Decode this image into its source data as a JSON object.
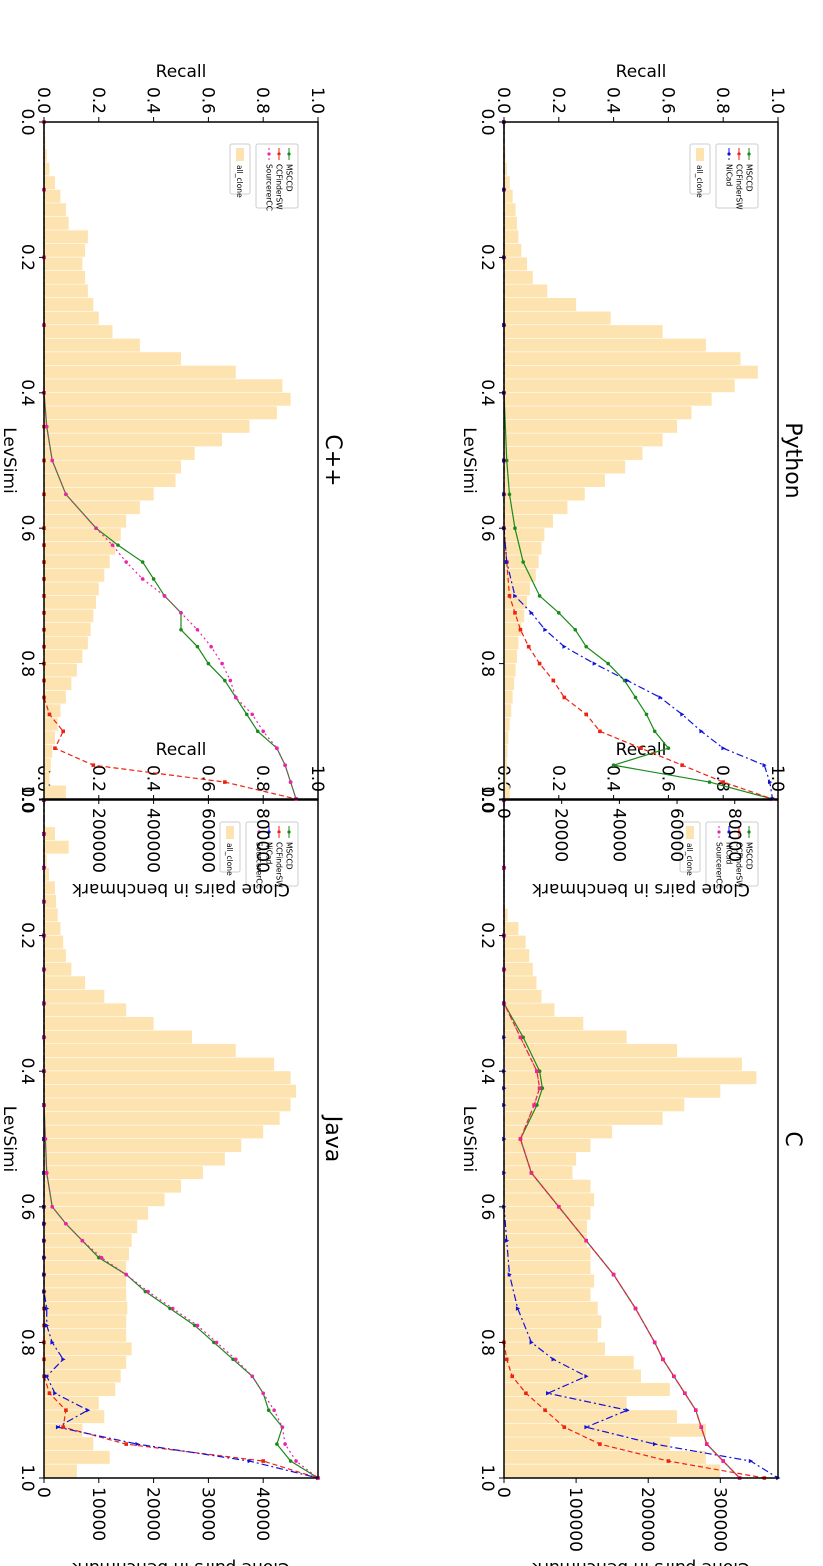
{
  "figure": {
    "rotation": "page rotated 90 degrees clockwise",
    "colors": {
      "MSCCD": "#1a8a1a",
      "CCFinderSW": "#ee2211",
      "NiCad": "#1111dd",
      "SourcererCC": "#ee22aa",
      "all_clone": "#fde3b0"
    }
  },
  "chart_data": [
    {
      "type": "line",
      "panel": "Java",
      "title": "Java",
      "xlabel": "LevSimi",
      "ylabel": "Recall",
      "ylabel_right": "Clone pairs in benchmark",
      "xlim": [
        0,
        1
      ],
      "ylim": [
        0,
        1
      ],
      "xticks": [
        "0.0",
        "0.2",
        "0.4",
        "0.6",
        "0.8",
        "1.0"
      ],
      "yticks": [
        "0.0",
        "0.2",
        "0.4",
        "0.6",
        "0.8",
        "1.0"
      ],
      "y2lim": [
        0,
        50000
      ],
      "y2ticks": [
        "0",
        "10000",
        "20000",
        "30000",
        "40000"
      ],
      "legend_placement": "upper-left",
      "legend": [
        "MSCCD",
        "CCFinderSW",
        "NiCad",
        "SourcererCC"
      ],
      "legend2": [
        "all_clone"
      ],
      "x": [
        0.0,
        0.05,
        0.1,
        0.15,
        0.2,
        0.25,
        0.3,
        0.35,
        0.4,
        0.45,
        0.5,
        0.55,
        0.6,
        0.625,
        0.65,
        0.675,
        0.7,
        0.725,
        0.75,
        0.775,
        0.8,
        0.825,
        0.85,
        0.875,
        0.9,
        0.925,
        0.95,
        0.975,
        1.0
      ],
      "series": [
        {
          "name": "MSCCD",
          "values": [
            0,
            0,
            0,
            0,
            0,
            0,
            0,
            0,
            0,
            0,
            0.005,
            0.01,
            0.03,
            0.08,
            0.14,
            0.2,
            0.3,
            0.37,
            0.46,
            0.55,
            0.62,
            0.69,
            0.76,
            0.8,
            0.82,
            0.87,
            0.85,
            0.9,
            1.0
          ]
        },
        {
          "name": "CCFinderSW",
          "values": [
            0,
            0,
            0,
            0,
            0,
            0,
            0,
            0,
            0,
            0,
            0,
            0,
            0,
            0,
            0,
            0,
            0,
            0,
            0,
            0,
            0,
            0,
            0,
            0.02,
            0.08,
            0.07,
            0.3,
            0.8,
            1.0
          ]
        },
        {
          "name": "NiCad",
          "values": [
            0,
            0,
            0,
            0,
            0,
            0,
            0,
            0,
            0,
            0,
            0,
            0,
            0,
            0,
            0,
            0,
            0,
            0,
            0.01,
            0.01,
            0.03,
            0.07,
            0.01,
            0.04,
            0.16,
            0.05,
            0.34,
            0.75,
            1.0
          ]
        },
        {
          "name": "SourcererCC",
          "values": [
            0,
            0,
            0,
            0,
            0,
            0,
            0,
            0,
            0,
            0,
            0.005,
            0.01,
            0.03,
            0.08,
            0.14,
            0.21,
            0.3,
            0.38,
            0.47,
            0.56,
            0.63,
            0.7,
            0.76,
            0.8,
            0.84,
            0.87,
            0.88,
            0.92,
            1.0
          ]
        }
      ],
      "bars": {
        "name": "all_clone",
        "x_start": 0.0,
        "bin_width": 0.02,
        "values": [
          0,
          0,
          2000,
          4500,
          500,
          900,
          2000,
          2200,
          2500,
          3000,
          3500,
          4000,
          5000,
          7500,
          11000,
          15000,
          20000,
          27000,
          35000,
          42000,
          45000,
          46000,
          45000,
          43000,
          40000,
          36000,
          33000,
          29000,
          25000,
          22000,
          19000,
          17000,
          16000,
          15500,
          15000,
          15000,
          15000,
          15200,
          15000,
          15000,
          16000,
          15000,
          14000,
          13000,
          10000,
          11000,
          7000,
          9000,
          12000,
          6000
        ]
      }
    },
    {
      "type": "line",
      "panel": "C",
      "title": "C",
      "xlabel": "LevSimi",
      "ylabel": "Recall",
      "ylabel_right": "Clone pairs in benchmark",
      "xlim": [
        0,
        1
      ],
      "ylim": [
        0,
        1
      ],
      "xticks": [
        "0.0",
        "0.2",
        "0.4",
        "0.6",
        "0.8",
        "1.0"
      ],
      "yticks": [
        "0.0",
        "0.2",
        "0.4",
        "0.6",
        "0.8",
        "1.0"
      ],
      "y2lim": [
        0,
        380000
      ],
      "y2ticks": [
        "0",
        "100000",
        "200000",
        "300000"
      ],
      "legend_placement": "upper-left",
      "legend": [
        "MSCCD",
        "CCFinderSW",
        "NiCad",
        "SourcererCC"
      ],
      "legend2": [
        "all_clone"
      ],
      "x": [
        0.0,
        0.1,
        0.2,
        0.25,
        0.3,
        0.35,
        0.4,
        0.425,
        0.45,
        0.5,
        0.55,
        0.6,
        0.65,
        0.7,
        0.75,
        0.8,
        0.825,
        0.85,
        0.875,
        0.9,
        0.925,
        0.95,
        0.975,
        1.0
      ],
      "series": [
        {
          "name": "MSCCD",
          "values": [
            0,
            0,
            0,
            0,
            0,
            0.07,
            0.13,
            0.14,
            0.12,
            0.06,
            0.1,
            0.2,
            0.3,
            0.4,
            0.48,
            0.55,
            0.58,
            0.62,
            0.66,
            0.7,
            0.72,
            0.74,
            0.8,
            0.86
          ]
        },
        {
          "name": "CCFinderSW",
          "values": [
            0,
            0,
            0,
            0,
            0,
            0.06,
            0.12,
            0.13,
            0.11,
            0.06,
            0.1,
            0.2,
            0.3,
            0.4,
            0.48,
            0.55,
            0.58,
            0.62,
            0.66,
            0.7,
            0.72,
            0.74,
            0.8,
            0.86
          ]
        },
        {
          "name": "NiCad",
          "values": [
            0,
            0,
            0,
            0,
            0,
            0,
            0,
            0,
            0,
            0,
            0,
            0,
            0.01,
            0.02,
            0.05,
            0.1,
            0.18,
            0.3,
            0.16,
            0.45,
            0.3,
            0.55,
            0.9,
            1.0
          ]
        },
        {
          "name": "SourcererCC",
          "values": [
            0,
            0,
            0,
            0,
            0,
            0.06,
            0.12,
            0.13,
            0.11,
            0.06,
            0.1,
            0.2,
            0.3,
            0.4,
            0.48,
            0.55,
            0.58,
            0.62,
            0.66,
            0.7,
            0.72,
            0.74,
            0.8,
            0.86
          ]
        }
      ],
      "extra_series": {
        "name": "CCFinderSW",
        "x": [
          0.8,
          0.825,
          0.85,
          0.875,
          0.9,
          0.925,
          0.95,
          0.975,
          1.0
        ],
        "values": [
          0,
          0.01,
          0.03,
          0.08,
          0.15,
          0.22,
          0.35,
          0.6,
          0.95
        ]
      },
      "bars": {
        "name": "all_clone",
        "x_start": 0.0,
        "bin_width": 0.02,
        "values": [
          0,
          0,
          0,
          0,
          0,
          0,
          0,
          0,
          5000,
          20000,
          30000,
          35000,
          40000,
          45000,
          52000,
          70000,
          110000,
          170000,
          240000,
          330000,
          350000,
          300000,
          250000,
          220000,
          150000,
          120000,
          100000,
          95000,
          120000,
          125000,
          120000,
          115000,
          115000,
          120000,
          120000,
          125000,
          120000,
          130000,
          135000,
          130000,
          140000,
          180000,
          190000,
          230000,
          170000,
          240000,
          280000,
          230000,
          280000,
          300000
        ]
      }
    },
    {
      "type": "line",
      "panel": "C++",
      "title": "C++",
      "xlabel": "LevSimi",
      "ylabel": "Recall",
      "ylabel_right": "Clone pairs in benchmark",
      "xlim": [
        0,
        1
      ],
      "ylim": [
        0,
        1
      ],
      "xticks": [
        "0.0",
        "0.2",
        "0.4",
        "0.6",
        "0.8",
        "1.0"
      ],
      "yticks": [
        "0.0",
        "0.2",
        "0.4",
        "0.6",
        "0.8",
        "1.0"
      ],
      "y2lim": [
        0,
        1000000
      ],
      "y2ticks": [
        "200000",
        "400000",
        "600000",
        "800000"
      ],
      "legend_placement": "upper-left",
      "legend": [
        "MSCCD",
        "CCFinderSW",
        "SourcererCC"
      ],
      "legend2": [
        "all_clone"
      ],
      "x": [
        0.0,
        0.1,
        0.2,
        0.3,
        0.4,
        0.45,
        0.5,
        0.55,
        0.6,
        0.625,
        0.65,
        0.675,
        0.7,
        0.725,
        0.75,
        0.775,
        0.8,
        0.825,
        0.85,
        0.875,
        0.9,
        0.925,
        0.95,
        0.975,
        1.0
      ],
      "series": [
        {
          "name": "MSCCD",
          "values": [
            0,
            0,
            0,
            0,
            0,
            0.01,
            0.03,
            0.08,
            0.19,
            0.27,
            0.36,
            0.4,
            0.44,
            0.5,
            0.5,
            0.56,
            0.6,
            0.66,
            0.7,
            0.74,
            0.78,
            0.85,
            0.88,
            0.9,
            0.92
          ]
        },
        {
          "name": "CCFinderSW",
          "values": [
            0,
            0,
            0,
            0,
            0,
            0,
            0,
            0,
            0,
            0,
            0,
            0,
            0,
            0,
            0,
            0,
            0,
            0,
            0,
            0.02,
            0.07,
            0.04,
            0.18,
            0.66,
            0.92
          ]
        },
        {
          "name": "SourcererCC",
          "values": [
            0,
            0,
            0,
            0,
            0,
            0.01,
            0.03,
            0.08,
            0.19,
            0.25,
            0.3,
            0.36,
            0.44,
            0.5,
            0.56,
            0.61,
            0.65,
            0.68,
            0.7,
            0.76,
            0.8,
            0.85,
            0.88,
            0.9,
            0.92
          ]
        }
      ],
      "bars": {
        "name": "all_clone",
        "x_start": 0.0,
        "bin_width": 0.02,
        "values": [
          0,
          5000,
          10000,
          20000,
          40000,
          60000,
          80000,
          90000,
          160000,
          150000,
          140000,
          150000,
          160000,
          180000,
          200000,
          250000,
          350000,
          500000,
          700000,
          870000,
          900000,
          850000,
          750000,
          650000,
          550000,
          500000,
          480000,
          400000,
          350000,
          300000,
          280000,
          260000,
          240000,
          220000,
          200000,
          190000,
          180000,
          170000,
          160000,
          140000,
          120000,
          100000,
          80000,
          60000,
          50000,
          40000,
          30000,
          25000,
          20000,
          80000
        ]
      }
    },
    {
      "type": "line",
      "panel": "Python",
      "title": "Python",
      "xlabel": "LevSimi",
      "ylabel": "Recall",
      "ylabel_right": "Clone pairs in benchmark",
      "xlim": [
        0,
        1
      ],
      "ylim": [
        0,
        1
      ],
      "xticks": [
        "0.0",
        "0.2",
        "0.4",
        "0.6",
        "0.8",
        "1.0"
      ],
      "yticks": [
        "0.0",
        "0.2",
        "0.4",
        "0.6",
        "0.8",
        "1.0"
      ],
      "y2lim": [
        0,
        95000
      ],
      "y2ticks": [
        "0",
        "20000",
        "40000",
        "60000",
        "80000"
      ],
      "legend_placement": "upper-left",
      "legend": [
        "MSCCD",
        "CCFinderSW",
        "NiCad"
      ],
      "legend2": [
        "all_clone"
      ],
      "x": [
        0.0,
        0.1,
        0.2,
        0.3,
        0.4,
        0.5,
        0.55,
        0.6,
        0.65,
        0.7,
        0.725,
        0.75,
        0.775,
        0.8,
        0.825,
        0.85,
        0.875,
        0.9,
        0.925,
        0.95,
        0.975,
        1.0
      ],
      "series": [
        {
          "name": "MSCCD",
          "values": [
            0,
            0,
            0,
            0,
            0,
            0.01,
            0.02,
            0.04,
            0.07,
            0.13,
            0.2,
            0.26,
            0.3,
            0.38,
            0.44,
            0.48,
            0.52,
            0.55,
            0.6,
            0.4,
            0.75,
            0.98
          ]
        },
        {
          "name": "CCFinderSW",
          "values": [
            0,
            0,
            0,
            0,
            0,
            0,
            0,
            0,
            0.01,
            0.02,
            0.04,
            0.06,
            0.09,
            0.13,
            0.18,
            0.22,
            0.3,
            0.35,
            0.5,
            0.65,
            0.8,
            0.98
          ]
        },
        {
          "name": "NiCad",
          "values": [
            0,
            0,
            0,
            0,
            0,
            0,
            0,
            0,
            0.01,
            0.04,
            0.1,
            0.15,
            0.22,
            0.33,
            0.45,
            0.57,
            0.65,
            0.72,
            0.8,
            0.95,
            0.97,
            0.98
          ]
        }
      ],
      "bars": {
        "name": "all_clone",
        "x_start": 0.0,
        "bin_width": 0.02,
        "values": [
          0,
          0,
          500,
          1000,
          2000,
          3000,
          4000,
          4500,
          5000,
          6000,
          8000,
          10000,
          15000,
          25000,
          37000,
          55000,
          70000,
          82000,
          88000,
          80000,
          72000,
          65000,
          60000,
          55000,
          48000,
          42000,
          35000,
          28000,
          22000,
          17000,
          14000,
          13000,
          12000,
          11000,
          9000,
          8000,
          7000,
          6000,
          5000,
          4500,
          4000,
          3500,
          3000,
          2500,
          2000,
          1500,
          1200,
          1000,
          800,
          2000
        ]
      }
    }
  ]
}
